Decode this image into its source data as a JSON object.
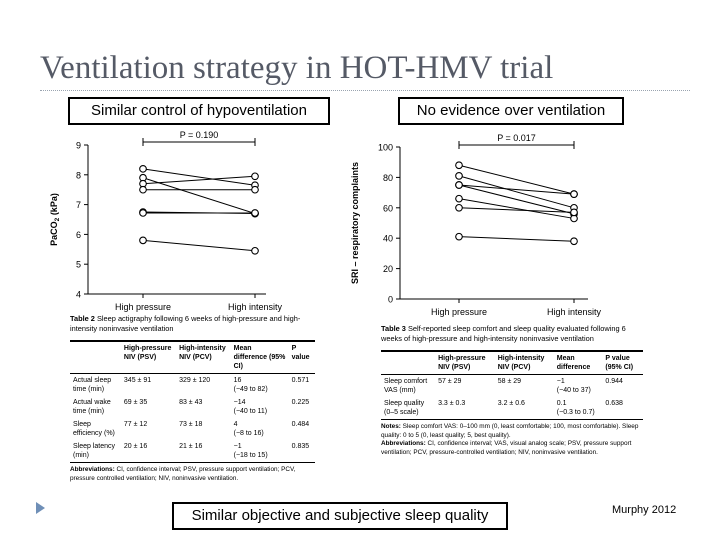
{
  "slide": {
    "title": "Ventilation strategy in HOT-HMV trial",
    "box_left": "Similar control of hypoventilation",
    "box_right": "No evidence over ventilation",
    "box_bottom": "Similar objective and subjective sleep quality",
    "credit": "Murphy 2012"
  },
  "chart_data": [
    {
      "type": "line",
      "p_value_label": "P = 0.190",
      "ylabel": "PaCO2 (kPa)",
      "categories": [
        "High pressure",
        "High intensity"
      ],
      "ylim": [
        4,
        9
      ],
      "yticks": [
        4,
        5,
        6,
        7,
        8,
        9
      ],
      "series": [
        {
          "values": [
            8.2,
            7.65
          ]
        },
        {
          "values": [
            7.9,
            6.7
          ]
        },
        {
          "values": [
            7.7,
            7.95
          ]
        },
        {
          "values": [
            7.5,
            7.5
          ]
        },
        {
          "values": [
            6.75,
            6.7
          ]
        },
        {
          "values": [
            6.72,
            6.72
          ]
        },
        {
          "values": [
            5.8,
            5.45
          ]
        }
      ]
    },
    {
      "type": "line",
      "p_value_label": "P = 0.017",
      "ylabel": "SRI – respiratory complaints",
      "categories": [
        "High pressure",
        "High intensity"
      ],
      "ylim": [
        0,
        100
      ],
      "yticks": [
        0,
        20,
        40,
        60,
        80,
        100
      ],
      "series": [
        {
          "values": [
            88,
            69
          ]
        },
        {
          "values": [
            81,
            60
          ]
        },
        {
          "values": [
            75,
            56
          ]
        },
        {
          "values": [
            75,
            69
          ]
        },
        {
          "values": [
            66,
            53
          ]
        },
        {
          "values": [
            60,
            57
          ]
        },
        {
          "values": [
            41,
            38
          ]
        }
      ]
    }
  ],
  "table2": {
    "label": "Table 2",
    "caption": "Sleep actigraphy following 6 weeks of high-pressure and high-intensity noninvasive ventilation",
    "headers": [
      "",
      "High-pressure NIV (PSV)",
      "High-intensity NIV (PCV)",
      "Mean difference (95% CI)",
      "P value"
    ],
    "rows": [
      {
        "label": "Actual sleep time (min)",
        "psv": "345 ± 91",
        "pcv": "329 ± 120",
        "diff": "16",
        "ci": "(−49 to 82)",
        "p": "0.571"
      },
      {
        "label": "Actual wake time (min)",
        "psv": "69 ± 35",
        "pcv": "83 ± 43",
        "diff": "−14",
        "ci": "(−40 to 11)",
        "p": "0.225"
      },
      {
        "label": "Sleep efficiency (%)",
        "psv": "77 ± 12",
        "pcv": "73 ± 18",
        "diff": "4",
        "ci": "(−8 to 16)",
        "p": "0.484"
      },
      {
        "label": "Sleep latency (min)",
        "psv": "20 ± 16",
        "pcv": "21 ± 16",
        "diff": "−1",
        "ci": "(−18 to 15)",
        "p": "0.835"
      }
    ],
    "abbrev_label": "Abbreviations:",
    "abbrev": "CI, confidence interval; PSV, pressure support ventilation; PCV, pressure controlled ventilation; NIV, noninvasive ventilation."
  },
  "table3": {
    "label": "Table 3",
    "caption": "Self-reported sleep comfort and sleep quality evaluated following 6 weeks of high-pressure and high-intensity noninvasive ventilation",
    "headers": [
      "",
      "High-pressure NIV (PSV)",
      "High-intensity NIV (PCV)",
      "Mean difference",
      "P value (95% CI)"
    ],
    "rows": [
      {
        "label": "Sleep comfort VAS (mm)",
        "psv": "57 ± 29",
        "pcv": "58 ± 29",
        "diff": "−1",
        "ci": "(−40 to 37)",
        "p": "0.944"
      },
      {
        "label": "Sleep quality (0–5 scale)",
        "psv": "3.3 ± 0.3",
        "pcv": "3.2 ± 0.6",
        "diff": "0.1",
        "ci": "(−0.3 to 0.7)",
        "p": "0.638"
      }
    ],
    "notes_label": "Notes:",
    "notes": "Sleep comfort VAS: 0–100 mm (0, least comfortable; 100, most comfortable). Sleep quality: 0 to 5 (0, least quality; 5, best quality).",
    "abbrev_label": "Abbreviations:",
    "abbrev": "CI, confidence interval; VAS, visual analog scale; PSV, pressure support ventilation; PCV, pressure-controlled ventilation; NIV, noninvasive ventilation."
  }
}
